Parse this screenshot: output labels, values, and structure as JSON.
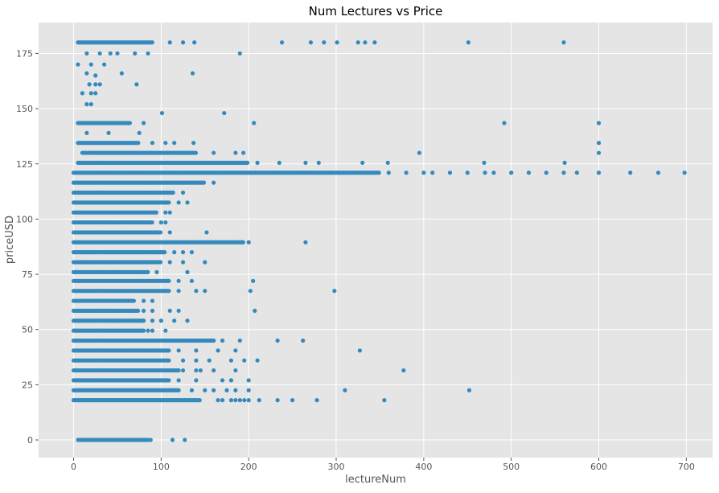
{
  "chart_data": {
    "type": "scatter",
    "title": "Num Lectures vs Price",
    "xlabel": "lectureNum",
    "ylabel": "priceUSD",
    "xlim": [
      -40,
      730
    ],
    "ylim": [
      -8,
      189
    ],
    "x_ticks": [
      0,
      100,
      200,
      300,
      400,
      500,
      600,
      700
    ],
    "y_ticks": [
      0,
      25,
      50,
      75,
      100,
      125,
      150,
      175
    ],
    "grid": true,
    "legend": "none",
    "point_color": "#348abd",
    "background_color": "#e5e5e5",
    "price_levels": [
      {
        "y": 0,
        "x_min": 5,
        "x_max": 85,
        "extra_x": [
          88,
          113,
          127
        ]
      },
      {
        "y": 17.99,
        "x_min": 0,
        "x_max": 145,
        "extra_x": [
          165,
          170,
          180,
          185,
          190,
          195,
          200,
          212,
          233,
          250,
          278,
          355
        ]
      },
      {
        "y": 22.49,
        "x_min": 0,
        "x_max": 120,
        "extra_x": [
          135,
          150,
          160,
          175,
          185,
          200,
          310,
          452
        ]
      },
      {
        "y": 26.99,
        "x_min": 0,
        "x_max": 110,
        "extra_x": [
          120,
          140,
          170,
          180,
          200
        ]
      },
      {
        "y": 31.49,
        "x_min": 0,
        "x_max": 120,
        "extra_x": [
          125,
          140,
          145,
          160,
          185,
          377
        ]
      },
      {
        "y": 35.99,
        "x_min": 0,
        "x_max": 110,
        "extra_x": [
          125,
          140,
          155,
          180,
          195,
          210
        ]
      },
      {
        "y": 40.49,
        "x_min": 0,
        "x_max": 110,
        "extra_x": [
          120,
          140,
          165,
          185,
          327
        ]
      },
      {
        "y": 44.99,
        "x_min": 0,
        "x_max": 160,
        "extra_x": [
          170,
          190,
          233,
          262
        ]
      },
      {
        "y": 49.49,
        "x_min": 0,
        "x_max": 80,
        "extra_x": [
          85,
          90,
          105
        ]
      },
      {
        "y": 53.99,
        "x_min": 0,
        "x_max": 80,
        "extra_x": [
          90,
          100,
          115,
          130
        ]
      },
      {
        "y": 58.49,
        "x_min": 0,
        "x_max": 75,
        "extra_x": [
          80,
          90,
          110,
          120,
          207
        ]
      },
      {
        "y": 62.99,
        "x_min": 0,
        "x_max": 70,
        "extra_x": [
          80,
          90
        ]
      },
      {
        "y": 67.49,
        "x_min": 0,
        "x_max": 110,
        "extra_x": [
          120,
          140,
          150,
          202,
          298
        ]
      },
      {
        "y": 71.99,
        "x_min": 0,
        "x_max": 110,
        "extra_x": [
          120,
          135,
          205
        ]
      },
      {
        "y": 75.99,
        "x_min": 0,
        "x_max": 85,
        "extra_x": [
          95,
          130
        ]
      },
      {
        "y": 80.49,
        "x_min": 0,
        "x_max": 100,
        "extra_x": [
          110,
          125,
          150
        ]
      },
      {
        "y": 84.99,
        "x_min": 0,
        "x_max": 105,
        "extra_x": [
          115,
          125,
          135
        ]
      },
      {
        "y": 89.49,
        "x_min": 0,
        "x_max": 195,
        "extra_x": [
          200,
          265
        ]
      },
      {
        "y": 93.99,
        "x_min": 0,
        "x_max": 100,
        "extra_x": [
          110,
          152
        ]
      },
      {
        "y": 98.49,
        "x_min": 0,
        "x_max": 90,
        "extra_x": [
          100,
          105
        ]
      },
      {
        "y": 102.99,
        "x_min": 0,
        "x_max": 95,
        "extra_x": [
          105,
          110
        ]
      },
      {
        "y": 107.49,
        "x_min": 0,
        "x_max": 110,
        "extra_x": [
          120,
          130
        ]
      },
      {
        "y": 111.99,
        "x_min": 0,
        "x_max": 115,
        "extra_x": [
          125
        ]
      },
      {
        "y": 116.49,
        "x_min": 0,
        "x_max": 150,
        "extra_x": [
          160
        ]
      },
      {
        "y": 120.99,
        "x_min": 0,
        "x_max": 350,
        "extra_x": [
          360,
          380,
          400,
          410,
          430,
          450,
          470,
          480,
          500,
          520,
          540,
          560,
          575,
          600,
          636,
          668,
          698
        ]
      },
      {
        "y": 125.49,
        "x_min": 5,
        "x_max": 200,
        "extra_x": [
          210,
          235,
          265,
          280,
          330,
          359,
          469,
          561
        ]
      },
      {
        "y": 129.99,
        "x_min": 10,
        "x_max": 140,
        "extra_x": [
          160,
          185,
          194,
          395,
          600
        ]
      },
      {
        "y": 134.49,
        "x_min": 5,
        "x_max": 75,
        "extra_x": [
          90,
          105,
          115,
          137,
          600
        ]
      },
      {
        "y": 143.49,
        "x_min": 5,
        "x_max": 65,
        "extra_x": [
          80,
          206,
          492,
          600
        ]
      },
      {
        "y": 179.99,
        "x_min": 5,
        "x_max": 90,
        "extra_x": [
          110,
          125,
          138,
          238,
          271,
          286,
          301,
          325,
          333,
          344,
          451,
          560
        ]
      }
    ],
    "sparse_points": [
      {
        "x": 5,
        "y": 170
      },
      {
        "x": 15,
        "y": 175
      },
      {
        "x": 20,
        "y": 170
      },
      {
        "x": 25,
        "y": 165
      },
      {
        "x": 30,
        "y": 175
      },
      {
        "x": 35,
        "y": 170
      },
      {
        "x": 42,
        "y": 175
      },
      {
        "x": 50,
        "y": 175
      },
      {
        "x": 55,
        "y": 166
      },
      {
        "x": 70,
        "y": 175
      },
      {
        "x": 85,
        "y": 175
      },
      {
        "x": 136,
        "y": 166
      },
      {
        "x": 190,
        "y": 175
      },
      {
        "x": 18,
        "y": 161
      },
      {
        "x": 25,
        "y": 161
      },
      {
        "x": 72,
        "y": 161
      },
      {
        "x": 10,
        "y": 157
      },
      {
        "x": 20,
        "y": 157
      },
      {
        "x": 25,
        "y": 157
      },
      {
        "x": 15,
        "y": 152
      },
      {
        "x": 20,
        "y": 152
      },
      {
        "x": 101,
        "y": 148
      },
      {
        "x": 172,
        "y": 148
      },
      {
        "x": 15,
        "y": 139
      },
      {
        "x": 40,
        "y": 139
      },
      {
        "x": 75,
        "y": 139
      },
      {
        "x": 15,
        "y": 166
      },
      {
        "x": 30,
        "y": 161
      }
    ]
  }
}
